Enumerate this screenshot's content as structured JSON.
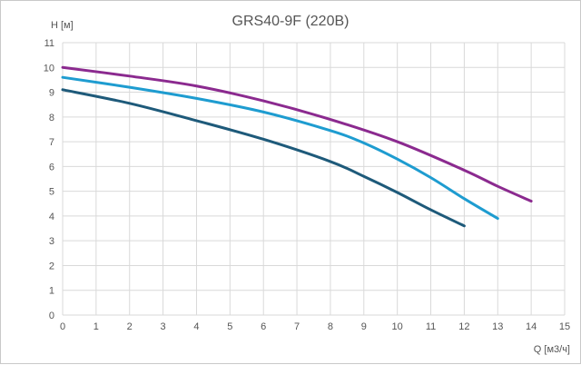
{
  "chart_data": {
    "type": "line",
    "title": "GRS40-9F (220В)",
    "xlabel": "Q [м3/ч]",
    "ylabel": "H [м]",
    "xlim": [
      0,
      15
    ],
    "ylim": [
      0,
      11
    ],
    "xticks": [
      "0",
      "1",
      "2",
      "3",
      "4",
      "5",
      "6",
      "7",
      "8",
      "9",
      "10",
      "11",
      "12",
      "13",
      "14",
      "15"
    ],
    "yticks": [
      "0",
      "1",
      "2",
      "3",
      "4",
      "5",
      "6",
      "7",
      "8",
      "9",
      "10",
      "11"
    ],
    "grid": true,
    "series": [
      {
        "color": "#8B2A8F",
        "points": [
          [
            0,
            10.0
          ],
          [
            2,
            9.65
          ],
          [
            4,
            9.25
          ],
          [
            6,
            8.65
          ],
          [
            8,
            7.9
          ],
          [
            10,
            7.0
          ],
          [
            12,
            5.85
          ],
          [
            13,
            5.2
          ],
          [
            14,
            4.6
          ]
        ]
      },
      {
        "color": "#1E9CD0",
        "points": [
          [
            0,
            9.6
          ],
          [
            2,
            9.2
          ],
          [
            4,
            8.75
          ],
          [
            6,
            8.2
          ],
          [
            8,
            7.45
          ],
          [
            9,
            6.95
          ],
          [
            10,
            6.3
          ],
          [
            11,
            5.55
          ],
          [
            12,
            4.7
          ],
          [
            13,
            3.9
          ]
        ]
      },
      {
        "color": "#1E5A7A",
        "points": [
          [
            0,
            9.1
          ],
          [
            2,
            8.55
          ],
          [
            4,
            7.85
          ],
          [
            6,
            7.1
          ],
          [
            8,
            6.2
          ],
          [
            9,
            5.6
          ],
          [
            10,
            4.95
          ],
          [
            11,
            4.25
          ],
          [
            12,
            3.6
          ]
        ]
      }
    ]
  }
}
